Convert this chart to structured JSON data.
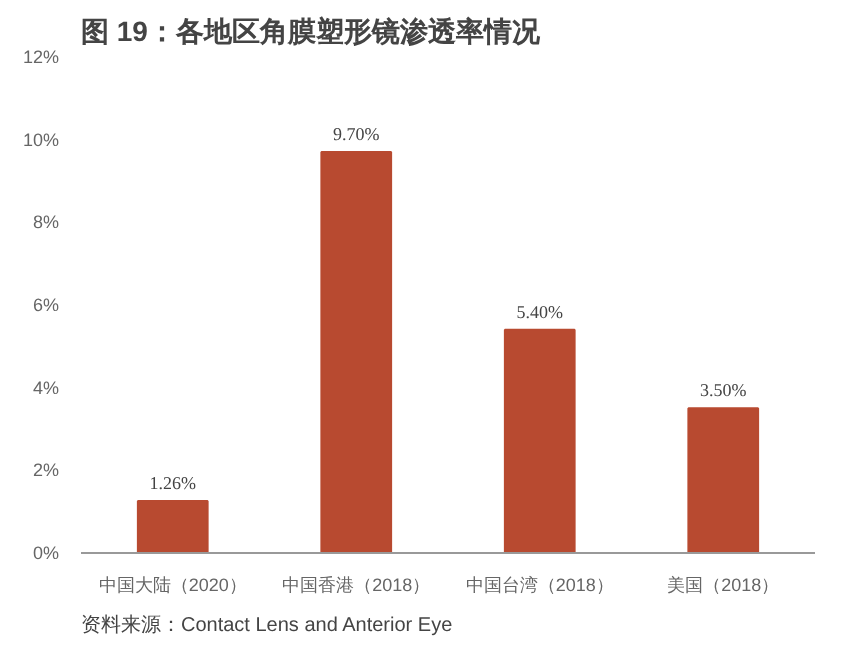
{
  "chart_data": {
    "type": "bar",
    "title": "图 19：各地区角膜塑形镜渗透率情况",
    "categories": [
      "中国大陆（2020）",
      "中国香港（2018）",
      "中国台湾（2018）",
      "美国（2018）"
    ],
    "values": [
      1.26,
      9.7,
      5.4,
      3.5
    ],
    "value_labels": [
      "1.26%",
      "9.70%",
      "5.40%",
      "3.50%"
    ],
    "color": "#b84a30",
    "ylim": [
      0,
      12
    ],
    "yticks": [
      {
        "value": 0,
        "label": "0%"
      },
      {
        "value": 2,
        "label": "2%"
      },
      {
        "value": 4,
        "label": "4%"
      },
      {
        "value": 6,
        "label": "6%"
      },
      {
        "value": 8,
        "label": "8%"
      },
      {
        "value": 10,
        "label": "10%"
      },
      {
        "value": 12,
        "label": "12%"
      }
    ],
    "grid": false,
    "annotations": [
      "资料来源：Contact Lens and Anterior Eye"
    ]
  }
}
